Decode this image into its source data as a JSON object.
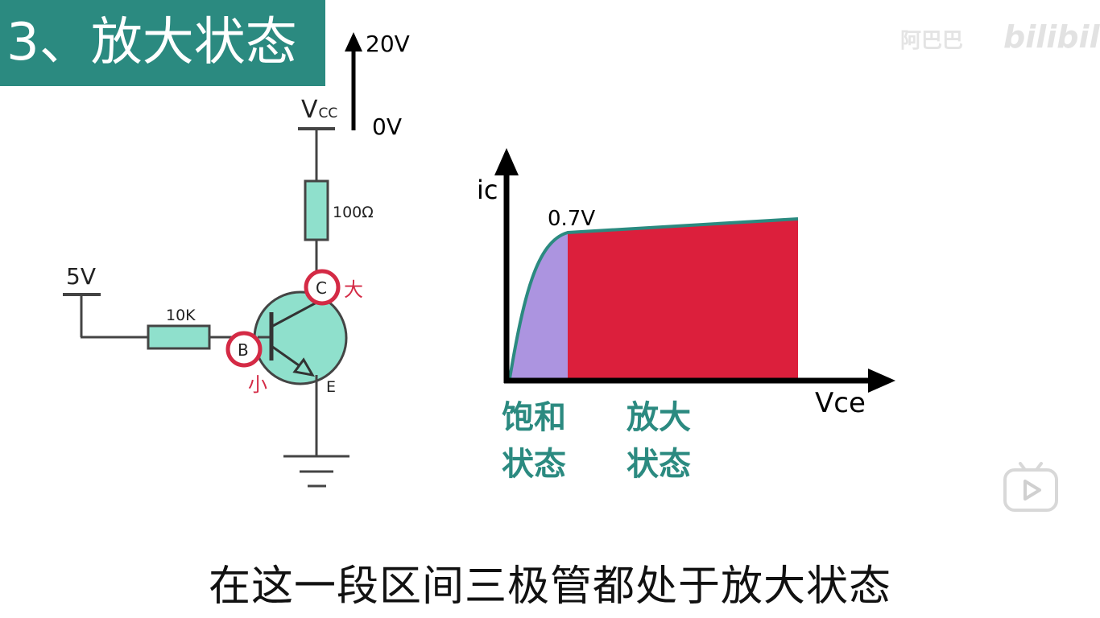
{
  "title": "3、放大状态",
  "watermark": {
    "text": "阿巴巴",
    "brand": "bilibili"
  },
  "voltage_scale": {
    "top": "20V",
    "bottom": "0V"
  },
  "circuit": {
    "vcc_label": "V",
    "vcc_subscript": "CC",
    "collector_resistor": "100Ω",
    "base_voltage": "5V",
    "base_resistor": "10K",
    "terminals": {
      "collector": "C",
      "base": "B",
      "emitter": "E"
    },
    "annotations": {
      "collector_current": "大",
      "base_current": "小"
    }
  },
  "graph": {
    "y_axis_label": "ic",
    "x_axis_label": "Vce",
    "knee_label": "0.7V",
    "regions": [
      {
        "line1": "饱和",
        "line2": "状态"
      },
      {
        "line1": "放大",
        "line2": "状态"
      }
    ]
  },
  "subtitle": "在这一段区间三极管都处于放大状态",
  "colors": {
    "banner": "#2b8a80",
    "transistor": "#8fe0cc",
    "saturation_region": "#ac94e0",
    "active_region": "#dc1f3c",
    "highlight_circle": "#d42a45",
    "curve": "#2b8a80"
  }
}
